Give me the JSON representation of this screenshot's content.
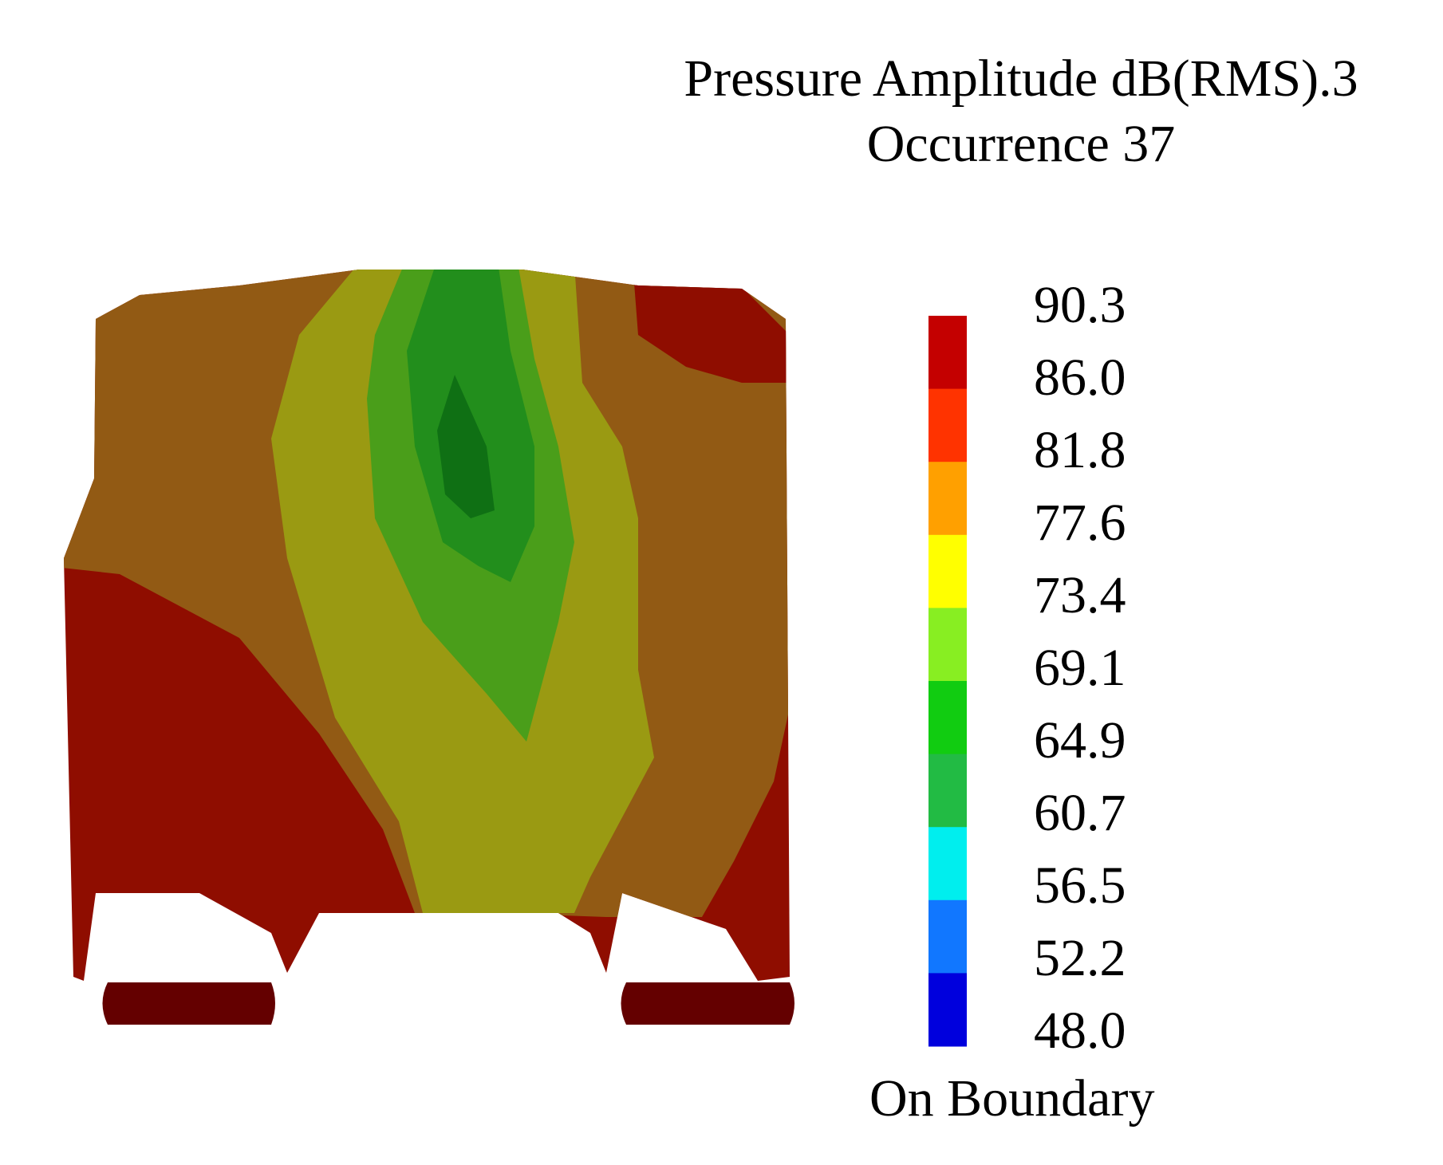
{
  "title": {
    "line1": "Pressure Amplitude dB(RMS).3",
    "line2": "Occurrence 37"
  },
  "legend": {
    "ticks": [
      "90.3",
      "86.0",
      "81.8",
      "77.6",
      "73.4",
      "69.1",
      "64.9",
      "60.7",
      "56.5",
      "52.2",
      "48.0"
    ],
    "band_colors": [
      "#c40000",
      "#ff3300",
      "#ffa000",
      "#ffff00",
      "#88ee22",
      "#11cc11",
      "#22bb44",
      "#00eeee",
      "#1177ff",
      "#0000dd"
    ],
    "footer": "On Boundary"
  },
  "colors": {
    "red": "#8f0d00",
    "brown": "#925a14",
    "olive": "#9a9a12",
    "green_light": "#4a9e1a",
    "green_mid": "#228e1c",
    "green_dark": "#0f7014",
    "maroon": "#640000"
  }
}
